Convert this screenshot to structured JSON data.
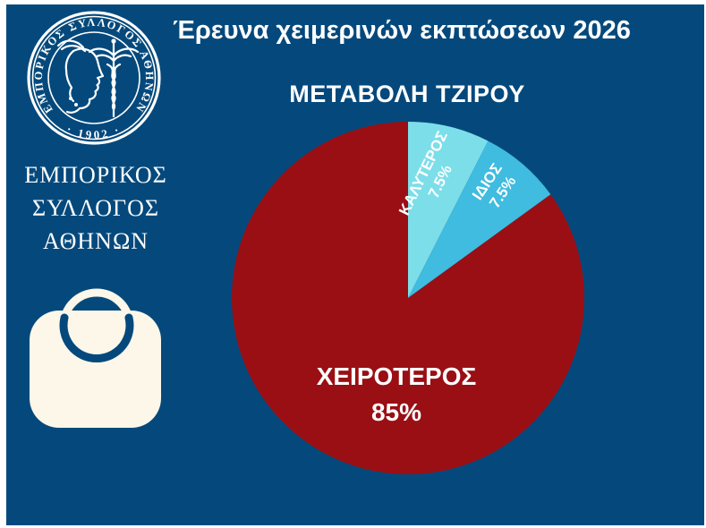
{
  "page": {
    "main_title": "Έρευνα χειμερινών εκπτώσεων 2026"
  },
  "logo": {
    "seal_ring_text": "ΕΜΠΟΡΙΚΟΣ ΣΥΛΛΟΓΟΣ ΑΘΗΝΩΝ",
    "seal_year": "· 1902 ·",
    "org_name_lines": [
      "ΕΜΠΟΡΙΚΟΣ",
      "ΣΥΛΛΟΓΟΣ",
      "ΑΘΗΝΩΝ"
    ]
  },
  "icons": {
    "seal": "hermes-seal-icon",
    "bag": "shopping-bag-icon"
  },
  "chart_data": {
    "type": "pie",
    "title": "ΜΕΤΑΒΟΛΗ ΤΖΙΡΟΥ",
    "categories": [
      "ΚΑΛΥΤΕΡΟΣ",
      "ΙΔΙΟΣ",
      "ΧΕΙΡΟΤΕΡΟΣ"
    ],
    "values": [
      7.5,
      7.5,
      85
    ],
    "unit": "%",
    "slice_labels": [
      "ΚΑΛΥΤΕΡΟΣ 7.5%",
      "ΙΔΙΟΣ 7.5%",
      "ΧΕΙΡΟΤΕΡΟΣ 85%"
    ],
    "colors": [
      "#7CDEE9",
      "#3FBCDF",
      "#9A0F14"
    ],
    "start_angle_deg": 0,
    "direction": "clockwise",
    "legend": "none",
    "labels_inside": true
  },
  "colors": {
    "background": "#05497C",
    "page_border": "#FFFFFF",
    "text": "#FFFFFF",
    "bag_fill": "#FCF7E9",
    "pie_worse": "#9A0F14",
    "pie_better": "#7CDEE9",
    "pie_same": "#3FBCDF"
  }
}
